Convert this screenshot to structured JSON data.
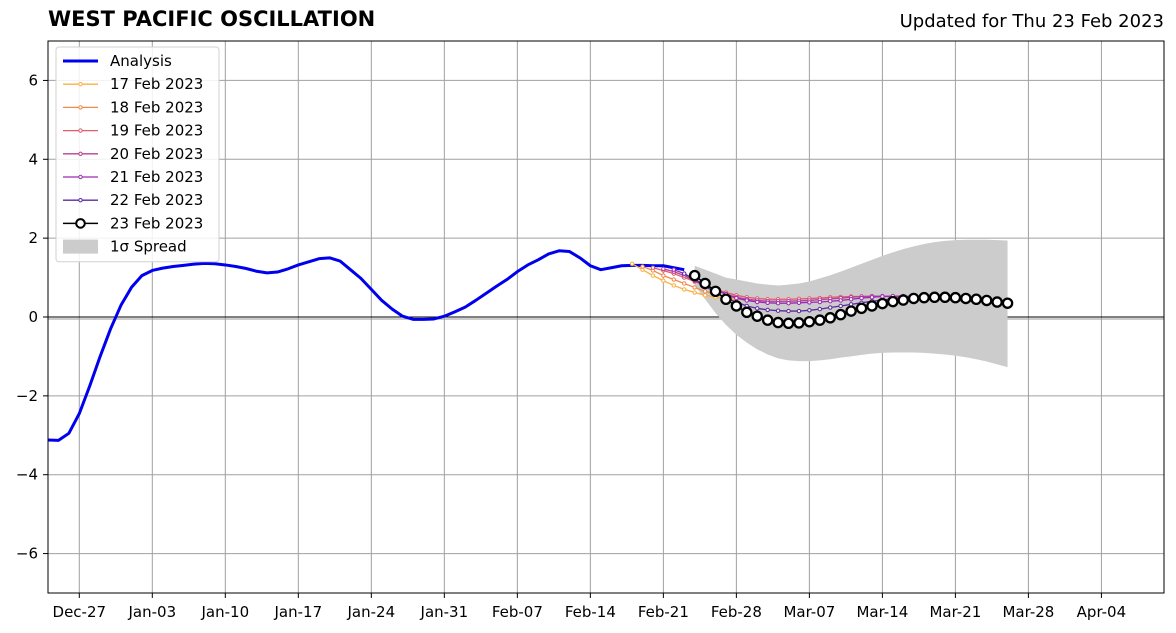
{
  "header": {
    "title": "WEST PACIFIC OSCILLATION",
    "updated": "Updated for Thu 23 Feb 2023"
  },
  "chart_data": {
    "type": "line",
    "title": "WEST PACIFIC OSCILLATION",
    "xlabel": "",
    "ylabel": "",
    "x_range": [
      "2022-12-24",
      "2023-04-10"
    ],
    "ylim": [
      -7,
      7
    ],
    "grid": true,
    "legend_position": "top-left",
    "x_ticks": [
      "Dec-27",
      "Jan-03",
      "Jan-10",
      "Jan-17",
      "Jan-24",
      "Jan-31",
      "Feb-07",
      "Feb-14",
      "Feb-21",
      "Feb-28",
      "Mar-07",
      "Mar-14",
      "Mar-21",
      "Mar-28",
      "Apr-04"
    ],
    "x_tick_dates": [
      "2022-12-27",
      "2023-01-03",
      "2023-01-10",
      "2023-01-17",
      "2023-01-24",
      "2023-01-31",
      "2023-02-07",
      "2023-02-14",
      "2023-02-21",
      "2023-02-28",
      "2023-03-07",
      "2023-03-14",
      "2023-03-21",
      "2023-03-28",
      "2023-04-04"
    ],
    "y_ticks": [
      -6,
      -4,
      -2,
      0,
      2,
      4,
      6
    ],
    "y_tick_labels": [
      "−6",
      "−4",
      "−2",
      "0",
      "2",
      "4",
      "6"
    ],
    "analysis": {
      "name": "Analysis",
      "color": "#0000ee",
      "x": [
        "2022-12-24",
        "2022-12-25",
        "2022-12-26",
        "2022-12-27",
        "2022-12-28",
        "2022-12-29",
        "2022-12-30",
        "2022-12-31",
        "2023-01-01",
        "2023-01-02",
        "2023-01-03",
        "2023-01-04",
        "2023-01-05",
        "2023-01-06",
        "2023-01-07",
        "2023-01-08",
        "2023-01-09",
        "2023-01-10",
        "2023-01-11",
        "2023-01-12",
        "2023-01-13",
        "2023-01-14",
        "2023-01-15",
        "2023-01-16",
        "2023-01-17",
        "2023-01-18",
        "2023-01-19",
        "2023-01-20",
        "2023-01-21",
        "2023-01-22",
        "2023-01-23",
        "2023-01-24",
        "2023-01-25",
        "2023-01-26",
        "2023-01-27",
        "2023-01-28",
        "2023-01-29",
        "2023-01-30",
        "2023-01-31",
        "2023-02-01",
        "2023-02-02",
        "2023-02-03",
        "2023-02-04",
        "2023-02-05",
        "2023-02-06",
        "2023-02-07",
        "2023-02-08",
        "2023-02-09",
        "2023-02-10",
        "2023-02-11",
        "2023-02-12",
        "2023-02-13",
        "2023-02-14",
        "2023-02-15",
        "2023-02-16",
        "2023-02-17",
        "2023-02-18",
        "2023-02-19",
        "2023-02-20",
        "2023-02-21",
        "2023-02-22",
        "2023-02-23"
      ],
      "y": [
        -3.12,
        -3.13,
        -2.95,
        -2.45,
        -1.75,
        -1.0,
        -0.3,
        0.3,
        0.75,
        1.05,
        1.18,
        1.24,
        1.28,
        1.31,
        1.34,
        1.36,
        1.35,
        1.32,
        1.28,
        1.23,
        1.16,
        1.12,
        1.14,
        1.22,
        1.32,
        1.4,
        1.48,
        1.5,
        1.42,
        1.2,
        0.98,
        0.7,
        0.42,
        0.2,
        0.02,
        -0.06,
        -0.06,
        -0.05,
        0.02,
        0.13,
        0.25,
        0.42,
        0.6,
        0.78,
        0.95,
        1.15,
        1.32,
        1.45,
        1.6,
        1.68,
        1.66,
        1.5,
        1.3,
        1.2,
        1.25,
        1.3,
        1.31,
        1.31,
        1.3,
        1.3,
        1.25,
        1.2
      ]
    },
    "forecasts": [
      {
        "name": "17 Feb 2023",
        "color": "#fbb040",
        "x": [
          "2023-02-18",
          "2023-02-19",
          "2023-02-20",
          "2023-02-21",
          "2023-02-22",
          "2023-02-23",
          "2023-02-24",
          "2023-02-25",
          "2023-02-26",
          "2023-02-27",
          "2023-02-28"
        ],
        "y": [
          1.35,
          1.2,
          1.05,
          0.92,
          0.8,
          0.7,
          0.62,
          0.55,
          0.5,
          0.47,
          0.45
        ]
      },
      {
        "name": "18 Feb 2023",
        "color": "#f08a4b",
        "x": [
          "2023-02-19",
          "2023-02-20",
          "2023-02-21",
          "2023-02-22",
          "2023-02-23",
          "2023-02-24",
          "2023-02-25",
          "2023-02-26",
          "2023-02-27",
          "2023-02-28",
          "2023-03-01"
        ],
        "y": [
          1.28,
          1.18,
          1.05,
          0.95,
          0.85,
          0.75,
          0.65,
          0.58,
          0.52,
          0.48,
          0.45
        ]
      },
      {
        "name": "19 Feb 2023",
        "color": "#e05c6e",
        "x": [
          "2023-02-20",
          "2023-02-21",
          "2023-02-22",
          "2023-02-23",
          "2023-02-24",
          "2023-02-25",
          "2023-02-26",
          "2023-02-27",
          "2023-02-28",
          "2023-03-01",
          "2023-03-02",
          "2023-03-03",
          "2023-03-04",
          "2023-03-05",
          "2023-03-06",
          "2023-03-07",
          "2023-03-08",
          "2023-03-09",
          "2023-03-10",
          "2023-03-11",
          "2023-03-12",
          "2023-03-13",
          "2023-03-14",
          "2023-03-15",
          "2023-03-16",
          "2023-03-17",
          "2023-03-18",
          "2023-03-19",
          "2023-03-20",
          "2023-03-21",
          "2023-03-22"
        ],
        "y": [
          1.25,
          1.18,
          1.1,
          1.0,
          0.9,
          0.8,
          0.7,
          0.62,
          0.55,
          0.5,
          0.47,
          0.45,
          0.45,
          0.45,
          0.46,
          0.47,
          0.48,
          0.5,
          0.51,
          0.52,
          0.52,
          0.52,
          0.52,
          0.51,
          0.5,
          0.49,
          0.48,
          0.47,
          0.46,
          0.45,
          0.44
        ]
      },
      {
        "name": "20 Feb 2023",
        "color": "#b83f97",
        "x": [
          "2023-02-21",
          "2023-02-22",
          "2023-02-23",
          "2023-02-24",
          "2023-02-25",
          "2023-02-26",
          "2023-02-27",
          "2023-02-28",
          "2023-03-01",
          "2023-03-02",
          "2023-03-03",
          "2023-03-04",
          "2023-03-05",
          "2023-03-06",
          "2023-03-07",
          "2023-03-08",
          "2023-03-09",
          "2023-03-10",
          "2023-03-11",
          "2023-03-12",
          "2023-03-13",
          "2023-03-14",
          "2023-03-15",
          "2023-03-16",
          "2023-03-17",
          "2023-03-18",
          "2023-03-19",
          "2023-03-20",
          "2023-03-21",
          "2023-03-22",
          "2023-03-23"
        ],
        "y": [
          1.22,
          1.15,
          1.05,
          0.92,
          0.8,
          0.68,
          0.58,
          0.5,
          0.45,
          0.42,
          0.4,
          0.4,
          0.4,
          0.41,
          0.42,
          0.44,
          0.46,
          0.48,
          0.5,
          0.52,
          0.53,
          0.53,
          0.52,
          0.51,
          0.5,
          0.48,
          0.46,
          0.44,
          0.42,
          0.4,
          0.38
        ]
      },
      {
        "name": "21 Feb 2023",
        "color": "#9b2ab3",
        "x": [
          "2023-02-22",
          "2023-02-23",
          "2023-02-24",
          "2023-02-25",
          "2023-02-26",
          "2023-02-27",
          "2023-02-28",
          "2023-03-01",
          "2023-03-02",
          "2023-03-03",
          "2023-03-04",
          "2023-03-05",
          "2023-03-06",
          "2023-03-07",
          "2023-03-08",
          "2023-03-09",
          "2023-03-10",
          "2023-03-11",
          "2023-03-12",
          "2023-03-13",
          "2023-03-14",
          "2023-03-15",
          "2023-03-16",
          "2023-03-17",
          "2023-03-18",
          "2023-03-19",
          "2023-03-20",
          "2023-03-21",
          "2023-03-22",
          "2023-03-23",
          "2023-03-24"
        ],
        "y": [
          1.2,
          1.1,
          0.95,
          0.82,
          0.7,
          0.58,
          0.48,
          0.42,
          0.38,
          0.36,
          0.35,
          0.35,
          0.36,
          0.37,
          0.38,
          0.4,
          0.42,
          0.45,
          0.48,
          0.5,
          0.52,
          0.53,
          0.53,
          0.52,
          0.5,
          0.48,
          0.46,
          0.44,
          0.42,
          0.4,
          0.38
        ]
      },
      {
        "name": "22 Feb 2023",
        "color": "#5b2a9e",
        "x": [
          "2023-02-23",
          "2023-02-24",
          "2023-02-25",
          "2023-02-26",
          "2023-02-27",
          "2023-02-28",
          "2023-03-01",
          "2023-03-02",
          "2023-03-03",
          "2023-03-04",
          "2023-03-05",
          "2023-03-06",
          "2023-03-07",
          "2023-03-08",
          "2023-03-09",
          "2023-03-10",
          "2023-03-11",
          "2023-03-12",
          "2023-03-13",
          "2023-03-14",
          "2023-03-15",
          "2023-03-16",
          "2023-03-17",
          "2023-03-18",
          "2023-03-19",
          "2023-03-20",
          "2023-03-21",
          "2023-03-22",
          "2023-03-23",
          "2023-03-24",
          "2023-03-25"
        ],
        "y": [
          1.1,
          0.95,
          0.78,
          0.62,
          0.48,
          0.38,
          0.28,
          0.22,
          0.18,
          0.16,
          0.15,
          0.15,
          0.17,
          0.2,
          0.24,
          0.28,
          0.32,
          0.36,
          0.4,
          0.43,
          0.46,
          0.48,
          0.49,
          0.5,
          0.5,
          0.49,
          0.47,
          0.45,
          0.43,
          0.4,
          0.38
        ]
      },
      {
        "name": "23 Feb 2023",
        "color": "#000000",
        "x": [
          "2023-02-24",
          "2023-02-25",
          "2023-02-26",
          "2023-02-27",
          "2023-02-28",
          "2023-03-01",
          "2023-03-02",
          "2023-03-03",
          "2023-03-04",
          "2023-03-05",
          "2023-03-06",
          "2023-03-07",
          "2023-03-08",
          "2023-03-09",
          "2023-03-10",
          "2023-03-11",
          "2023-03-12",
          "2023-03-13",
          "2023-03-14",
          "2023-03-15",
          "2023-03-16",
          "2023-03-17",
          "2023-03-18",
          "2023-03-19",
          "2023-03-20",
          "2023-03-21",
          "2023-03-22",
          "2023-03-23",
          "2023-03-24",
          "2023-03-25",
          "2023-03-26"
        ],
        "y": [
          1.05,
          0.85,
          0.65,
          0.45,
          0.28,
          0.12,
          0.02,
          -0.08,
          -0.14,
          -0.16,
          -0.15,
          -0.12,
          -0.08,
          -0.02,
          0.06,
          0.15,
          0.22,
          0.28,
          0.34,
          0.39,
          0.43,
          0.47,
          0.49,
          0.5,
          0.5,
          0.49,
          0.47,
          0.45,
          0.42,
          0.38,
          0.35
        ]
      }
    ],
    "spread": {
      "name": "1σ Spread",
      "color": "#cccccc",
      "x": [
        "2023-02-24",
        "2023-02-25",
        "2023-02-26",
        "2023-02-27",
        "2023-02-28",
        "2023-03-01",
        "2023-03-02",
        "2023-03-03",
        "2023-03-04",
        "2023-03-05",
        "2023-03-06",
        "2023-03-07",
        "2023-03-08",
        "2023-03-09",
        "2023-03-10",
        "2023-03-11",
        "2023-03-12",
        "2023-03-13",
        "2023-03-14",
        "2023-03-15",
        "2023-03-16",
        "2023-03-17",
        "2023-03-18",
        "2023-03-19",
        "2023-03-20",
        "2023-03-21",
        "2023-03-22",
        "2023-03-23",
        "2023-03-24",
        "2023-03-25",
        "2023-03-26"
      ],
      "upper": [
        1.3,
        1.2,
        1.1,
        1.0,
        0.95,
        0.9,
        0.85,
        0.82,
        0.8,
        0.82,
        0.85,
        0.9,
        0.98,
        1.06,
        1.15,
        1.25,
        1.35,
        1.45,
        1.55,
        1.64,
        1.72,
        1.79,
        1.85,
        1.9,
        1.93,
        1.95,
        1.96,
        1.96,
        1.96,
        1.95,
        1.94
      ],
      "lower": [
        0.8,
        0.45,
        0.1,
        -0.2,
        -0.45,
        -0.65,
        -0.82,
        -0.95,
        -1.05,
        -1.1,
        -1.12,
        -1.12,
        -1.1,
        -1.07,
        -1.03,
        -1.0,
        -0.96,
        -0.93,
        -0.91,
        -0.9,
        -0.9,
        -0.9,
        -0.91,
        -0.93,
        -0.95,
        -0.98,
        -1.02,
        -1.07,
        -1.13,
        -1.2,
        -1.27
      ]
    },
    "legend": [
      {
        "label": "Analysis",
        "kind": "analysis"
      },
      {
        "label": "17 Feb 2023",
        "kind": "forecast"
      },
      {
        "label": "18 Feb 2023",
        "kind": "forecast"
      },
      {
        "label": "19 Feb 2023",
        "kind": "forecast"
      },
      {
        "label": "20 Feb 2023",
        "kind": "forecast"
      },
      {
        "label": "21 Feb 2023",
        "kind": "forecast"
      },
      {
        "label": "22 Feb 2023",
        "kind": "forecast"
      },
      {
        "label": "23 Feb 2023",
        "kind": "latest"
      },
      {
        "label": "1σ Spread",
        "kind": "spread"
      }
    ]
  }
}
